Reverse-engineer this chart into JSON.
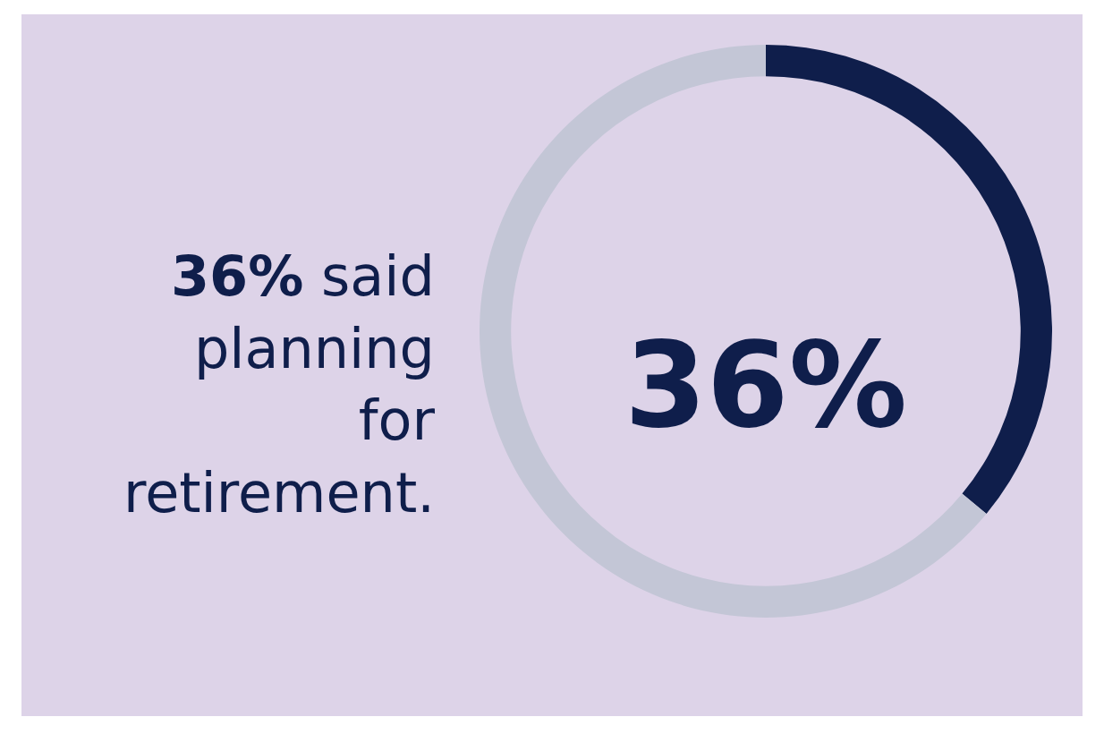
{
  "chart_data": {
    "type": "donut",
    "categories": [
      null,
      null
    ],
    "values": [
      36,
      64
    ],
    "colors": [
      "#0f1e4b",
      "#c3c6d6"
    ],
    "annotations": [
      "36%",
      "36% said planning for retirement."
    ]
  }
}
